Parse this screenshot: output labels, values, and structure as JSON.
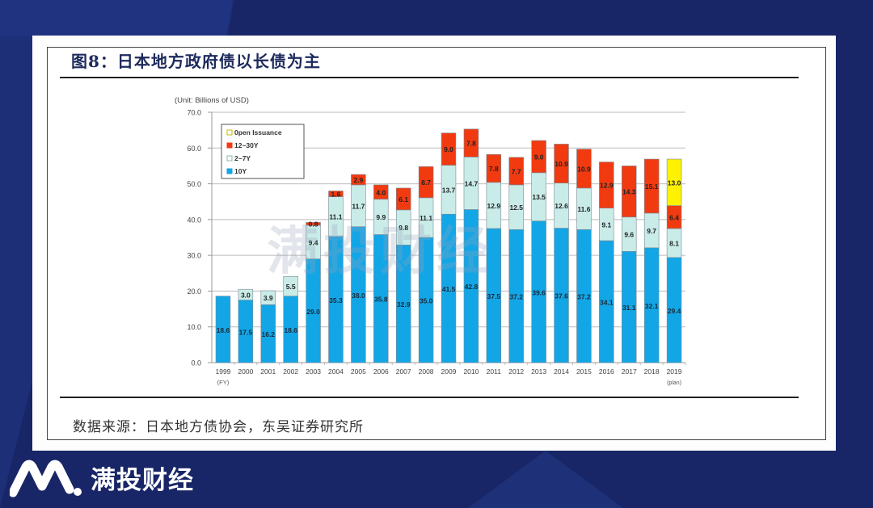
{
  "figure": {
    "title": "图8：日本地方政府债以长债为主",
    "source": "数据来源：日本地方债协会，东吴证券研究所"
  },
  "watermark": {
    "text": "满投财经",
    "icon": "mantou-logo-icon"
  },
  "brand": {
    "name": "满投财经",
    "icon": "mantou-logo-icon"
  },
  "colors": {
    "background": "#182567",
    "ten_year": "#13a6e6",
    "two_to_seven": "#c9ece8",
    "twelve_to_thirty": "#f23a10",
    "open_issuance": "#fff200"
  },
  "chart_data": {
    "type": "bar",
    "stacked": true,
    "title": "",
    "unit_label": "(Unit: Billions of USD)",
    "xlabel": "(FY)",
    "ylabel": "",
    "ylim": [
      0,
      70
    ],
    "yticks": [
      "0.0",
      "10.0",
      "20.0",
      "30.0",
      "40.0",
      "50.0",
      "60.0",
      "70.0"
    ],
    "grid": true,
    "legend_position": "top-left",
    "categories": [
      "1999",
      "2000",
      "2001",
      "2002",
      "2003",
      "2004",
      "2005",
      "2006",
      "2007",
      "2008",
      "2009",
      "2010",
      "2011",
      "2012",
      "2013",
      "2014",
      "2015",
      "2016",
      "2017",
      "2018",
      "2019"
    ],
    "last_category_note": "(plan)",
    "series": [
      {
        "name": "10Y",
        "color": "#13a6e6",
        "values": [
          18.6,
          17.5,
          16.2,
          18.6,
          29.0,
          35.3,
          38.0,
          35.8,
          32.9,
          35.0,
          41.5,
          42.8,
          37.5,
          37.2,
          39.6,
          37.6,
          37.2,
          34.1,
          31.1,
          32.1,
          29.4
        ]
      },
      {
        "name": "2~7Y",
        "color": "#c9ece8",
        "values": [
          0,
          3.0,
          3.9,
          5.5,
          9.4,
          11.1,
          11.7,
          9.9,
          9.8,
          11.1,
          13.7,
          14.7,
          12.9,
          12.5,
          13.5,
          12.6,
          11.6,
          9.1,
          9.6,
          9.7,
          8.1
        ]
      },
      {
        "name": "12~30Y",
        "color": "#f23a10",
        "values": [
          0,
          0,
          0,
          0,
          0.8,
          1.6,
          2.9,
          4.0,
          6.1,
          8.7,
          9.0,
          7.8,
          7.8,
          7.7,
          9.0,
          10.9,
          10.9,
          12.9,
          14.3,
          15.1,
          6.4
        ]
      },
      {
        "name": "0pen Issuance",
        "color": "#fff200",
        "values": [
          0,
          0,
          0,
          0,
          0,
          0,
          0,
          0,
          0,
          0,
          0,
          0,
          0,
          0,
          0,
          0,
          0,
          0,
          0,
          0,
          13.0
        ]
      }
    ],
    "legend_order": [
      "0pen Issuance",
      "12~30Y",
      "2~7Y",
      "10Y"
    ]
  }
}
